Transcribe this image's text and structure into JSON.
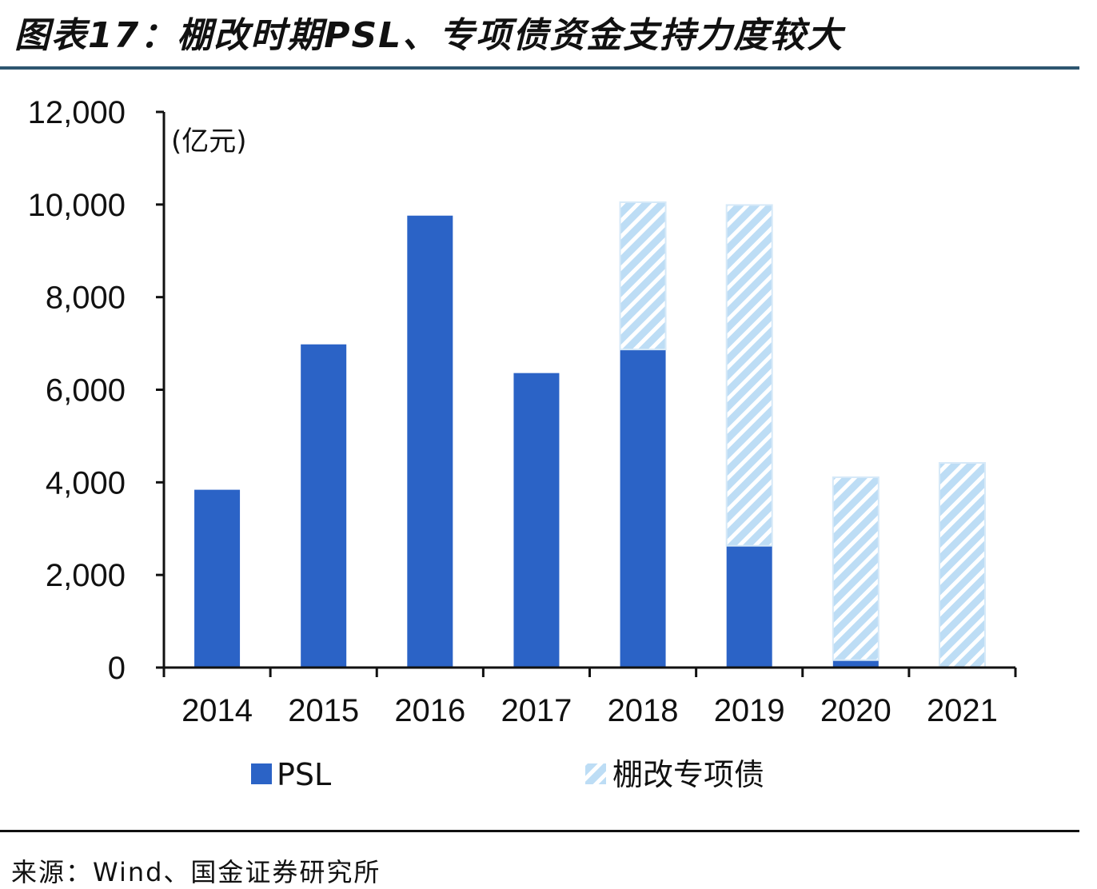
{
  "title": "图表17：棚改时期PSL、专项债资金支持力度较大",
  "source": "来源：Wind、国金证券研究所",
  "colors": {
    "psl": "#2B63C6",
    "bond_hatch": "#BDDDF5",
    "rule": "#2E5670"
  },
  "chart_data": {
    "type": "bar",
    "stacked": true,
    "title": "棚改时期PSL、专项债资金支持力度较大",
    "unit_label": "(亿元)",
    "xlabel": "",
    "ylabel": "",
    "ylim": [
      0,
      12000
    ],
    "yticks": [
      0,
      2000,
      4000,
      6000,
      8000,
      10000,
      12000
    ],
    "ytick_labels": [
      "0",
      "2,000",
      "4,000",
      "6,000",
      "8,000",
      "10,000",
      "12,000"
    ],
    "categories": [
      "2014",
      "2015",
      "2016",
      "2017",
      "2018",
      "2019",
      "2020",
      "2021"
    ],
    "series": [
      {
        "name": "PSL",
        "values": [
          3840,
          6980,
          9760,
          6360,
          6870,
          2630,
          160,
          0
        ]
      },
      {
        "name": "棚改专项债",
        "values": [
          0,
          0,
          0,
          0,
          3180,
          7360,
          3950,
          4420
        ]
      }
    ],
    "grid": false,
    "legend_position": "bottom"
  }
}
